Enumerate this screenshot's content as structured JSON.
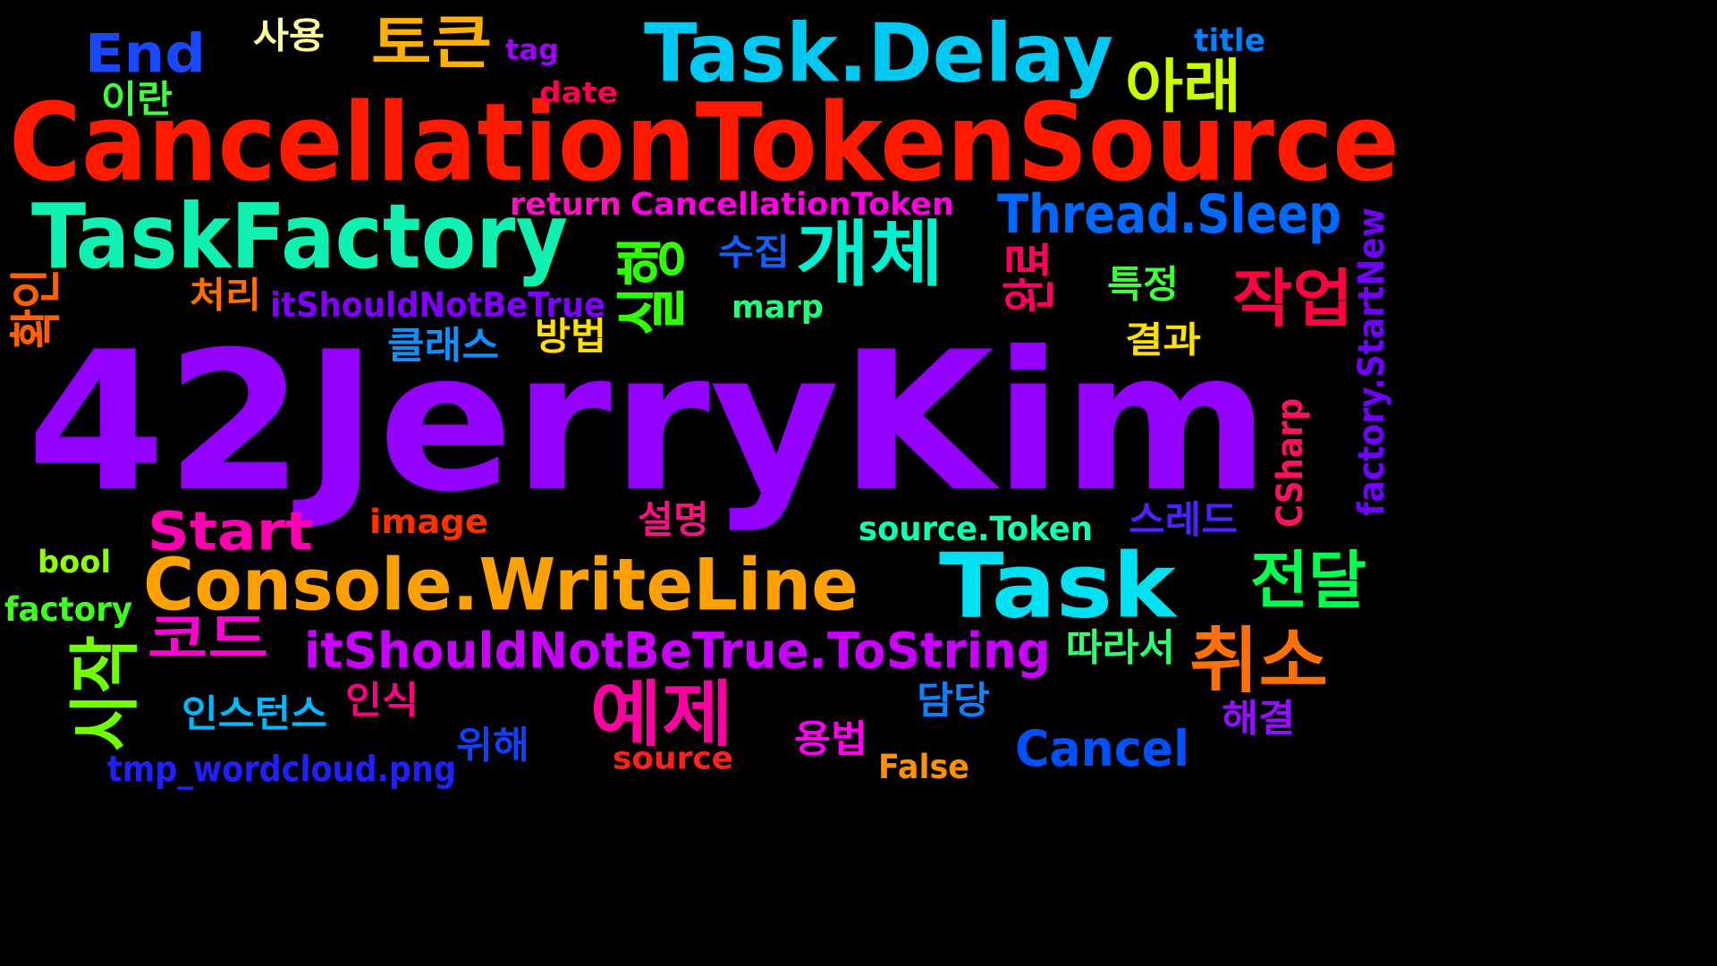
{
  "background": "#000000",
  "words": [
    {
      "key": "jerrykim",
      "text": "42JerryKim",
      "color": "#9400ff"
    },
    {
      "key": "cts",
      "text": "CancellationTokenSource",
      "color": "#ff1a00"
    },
    {
      "key": "taskdelay",
      "text": "Task.Delay",
      "color": "#00c8f0"
    },
    {
      "key": "taskfactory",
      "text": "TaskFactory",
      "color": "#10f0b0"
    },
    {
      "key": "console",
      "text": "Console.WriteLine",
      "color": "#ffa000"
    },
    {
      "key": "task",
      "text": "Task",
      "color": "#00e0f0"
    },
    {
      "key": "end",
      "text": "End",
      "color": "#1848ff"
    },
    {
      "key": "token",
      "text": "토큰",
      "color": "#ffb000"
    },
    {
      "key": "below",
      "text": "아래",
      "color": "#c8ff00"
    },
    {
      "key": "object",
      "text": "개체",
      "color": "#00f0d0"
    },
    {
      "key": "threadsleep",
      "text": "Thread.Sleep",
      "color": "#0068ff"
    },
    {
      "key": "work",
      "text": "작업",
      "color": "#ff0040"
    },
    {
      "key": "start",
      "text": "Start",
      "color": "#ff00b0"
    },
    {
      "key": "tostring",
      "text": "itShouldNotBeTrue.ToString",
      "color": "#c800ff"
    },
    {
      "key": "cancel_ko",
      "text": "취소",
      "color": "#ff7000"
    },
    {
      "key": "deliver",
      "text": "전달",
      "color": "#00ff50"
    },
    {
      "key": "example",
      "text": "예제",
      "color": "#ff00a0"
    },
    {
      "key": "cancel",
      "text": "Cancel",
      "color": "#0050ff"
    },
    {
      "key": "code",
      "text": "코드",
      "color": "#ff00d0"
    },
    {
      "key": "result",
      "text": "결과",
      "color": "#ffe000"
    },
    {
      "key": "run",
      "text": "실행",
      "color": "#30ff00"
    },
    {
      "key": "start_ko",
      "text": "시작",
      "color": "#70ff00"
    },
    {
      "key": "complete",
      "text": "완료",
      "color": "#ff0060"
    },
    {
      "key": "confirm",
      "text": "확인",
      "color": "#ff6000"
    },
    {
      "key": "use",
      "text": "사용",
      "color": "#ffffa0"
    },
    {
      "key": "tag",
      "text": "tag",
      "color": "#a000ff"
    },
    {
      "key": "title",
      "text": "title",
      "color": "#0080ff"
    },
    {
      "key": "irran",
      "text": "이란",
      "color": "#40ff40"
    },
    {
      "key": "date",
      "text": "date",
      "color": "#ff0050"
    },
    {
      "key": "return",
      "text": "return",
      "color": "#ff10c0"
    },
    {
      "key": "ctoken",
      "text": "CancellationToken",
      "color": "#ff00e0"
    },
    {
      "key": "collect",
      "text": "수집",
      "color": "#1060ff"
    },
    {
      "key": "specific",
      "text": "특정",
      "color": "#40ff40"
    },
    {
      "key": "process",
      "text": "처리",
      "color": "#ff7000"
    },
    {
      "key": "itshould",
      "text": "itShouldNotBeTrue",
      "color": "#8000ff"
    },
    {
      "key": "marp",
      "text": "marp",
      "color": "#20ff80"
    },
    {
      "key": "class",
      "text": "클래스",
      "color": "#1090ff"
    },
    {
      "key": "method",
      "text": "방법",
      "color": "#ffe000"
    },
    {
      "key": "factorysn",
      "text": "factory.StartNew",
      "color": "#7000ff"
    },
    {
      "key": "csharp",
      "text": "CSharp",
      "color": "#ff1060"
    },
    {
      "key": "image",
      "text": "image",
      "color": "#ff3000"
    },
    {
      "key": "explain",
      "text": "설명",
      "color": "#ff1080"
    },
    {
      "key": "sourcetoken",
      "text": "source.Token",
      "color": "#10ffb0"
    },
    {
      "key": "thread",
      "text": "스레드",
      "color": "#5020ff"
    },
    {
      "key": "bool",
      "text": "bool",
      "color": "#90ff00"
    },
    {
      "key": "factory",
      "text": "factory",
      "color": "#40ff20"
    },
    {
      "key": "therefore",
      "text": "따라서",
      "color": "#30ff70"
    },
    {
      "key": "instance",
      "text": "인스턴스",
      "color": "#00b8ff"
    },
    {
      "key": "recognize",
      "text": "인식",
      "color": "#ff0080"
    },
    {
      "key": "charge",
      "text": "담당",
      "color": "#1080ff"
    },
    {
      "key": "resolve",
      "text": "해결",
      "color": "#9010ff"
    },
    {
      "key": "forsake",
      "text": "위해",
      "color": "#1040ff"
    },
    {
      "key": "usage",
      "text": "용법",
      "color": "#ff00f0"
    },
    {
      "key": "tmp",
      "text": "tmp_wordcloud.png",
      "color": "#2020ff"
    },
    {
      "key": "source",
      "text": "source",
      "color": "#ff2020"
    },
    {
      "key": "false",
      "text": "False",
      "color": "#ff9000"
    }
  ]
}
